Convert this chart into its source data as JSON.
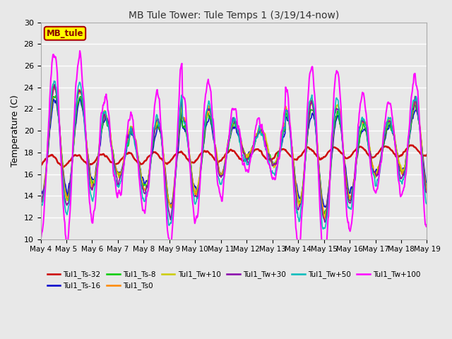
{
  "title": "MB Tule Tower: Tule Temps 1 (3/19/14-now)",
  "ylabel": "Temperature (C)",
  "ylim": [
    10,
    30
  ],
  "yticks": [
    10,
    12,
    14,
    16,
    18,
    20,
    22,
    24,
    26,
    28,
    30
  ],
  "date_labels": [
    "May 4",
    "May 5",
    "May 6",
    "May 7",
    "May 8",
    "May 9",
    "May 10",
    "May 11",
    "May 12",
    "May 13",
    "May 14",
    "May 15",
    "May 16",
    "May 17",
    "May 18",
    "May 19"
  ],
  "n_days": 15,
  "legend_box_label": "MB_tule",
  "legend_box_color": "#ffff00",
  "legend_box_text_color": "#880000",
  "series": [
    {
      "label": "Tul1_Ts-32",
      "color": "#cc0000",
      "lw": 1.8,
      "base": 17.5,
      "amp": 0.6,
      "trend": 0.05,
      "noise": 0.15
    },
    {
      "label": "Tul1_Ts-16",
      "color": "#0000cc",
      "lw": 1.2,
      "base": 18.0,
      "amp": 3.2,
      "trend": 0.0,
      "noise": 0.3
    },
    {
      "label": "Tul1_Ts-8",
      "color": "#00cc00",
      "lw": 1.2,
      "base": 18.0,
      "amp": 3.5,
      "trend": 0.0,
      "noise": 0.3
    },
    {
      "label": "Tul1_Ts0",
      "color": "#ff8800",
      "lw": 1.2,
      "base": 18.2,
      "amp": 3.8,
      "trend": 0.0,
      "noise": 0.3
    },
    {
      "label": "Tul1_Tw+10",
      "color": "#cccc00",
      "lw": 1.2,
      "base": 18.2,
      "amp": 3.8,
      "trend": 0.0,
      "noise": 0.3
    },
    {
      "label": "Tul1_Tw+30",
      "color": "#8800aa",
      "lw": 1.2,
      "base": 18.0,
      "amp": 4.0,
      "trend": 0.0,
      "noise": 0.35
    },
    {
      "label": "Tul1_Tw+50",
      "color": "#00bbbb",
      "lw": 1.2,
      "base": 17.8,
      "amp": 4.5,
      "trend": 0.0,
      "noise": 0.4
    },
    {
      "label": "Tul1_Tw+100",
      "color": "#ff00ff",
      "lw": 1.5,
      "base": 18.0,
      "amp": 6.5,
      "trend": 0.0,
      "noise": 0.5
    }
  ],
  "bg_color": "#e8e8e8",
  "plot_bg_color": "#e8e8e8"
}
